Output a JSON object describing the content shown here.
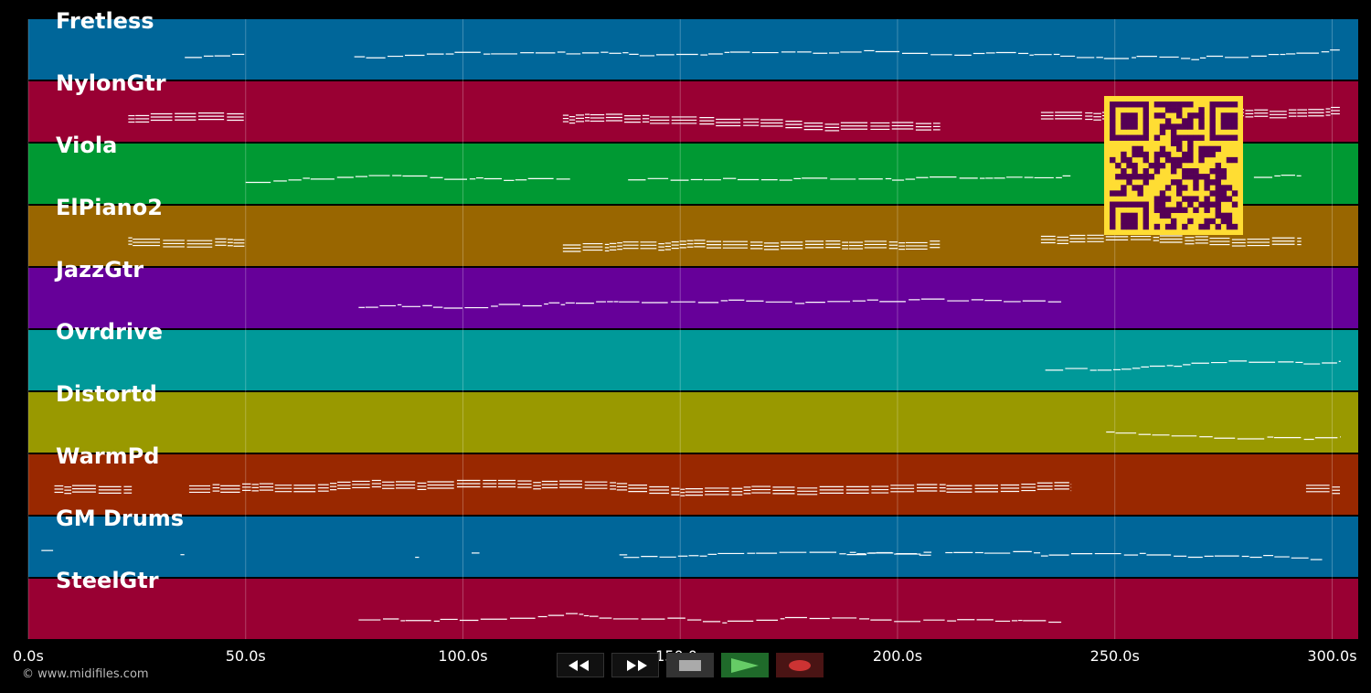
{
  "tracks": [
    {
      "name": "Fretless",
      "color": "#006699"
    },
    {
      "name": "NylonGtr",
      "color": "#990033"
    },
    {
      "name": "Viola",
      "color": "#009933"
    },
    {
      "name": "ElPiano2",
      "color": "#996600"
    },
    {
      "name": "JazzGtr",
      "color": "#660099"
    },
    {
      "name": "Ovrdrive",
      "color": "#009999"
    },
    {
      "name": "Distortd",
      "color": "#999900"
    },
    {
      "name": "WarmPd",
      "color": "#992800"
    },
    {
      "name": "GM Drums",
      "color": "#006699"
    },
    {
      "name": "SteelGtr",
      "color": "#990033"
    }
  ],
  "timeline": {
    "unit": "s",
    "max_seconds": 306,
    "ticks": [
      "0.0s",
      "50.0s",
      "100.0s",
      "150.0s",
      "200.0s",
      "250.0s",
      "300.0s"
    ],
    "tick_values": [
      0,
      50,
      100,
      150,
      200,
      250,
      300
    ]
  },
  "note_segments": [
    [
      [
        36,
        50
      ],
      [
        75,
        302
      ]
    ],
    [
      [
        23,
        50
      ],
      [
        123,
        210
      ],
      [
        233,
        302
      ]
    ],
    [
      [
        50,
        125
      ],
      [
        138,
        240
      ],
      [
        282,
        293
      ]
    ],
    [
      [
        23,
        50
      ],
      [
        123,
        210
      ],
      [
        233,
        293
      ]
    ],
    [
      [
        76,
        238
      ]
    ],
    [
      [
        234,
        302
      ]
    ],
    [
      [
        248,
        302
      ]
    ],
    [
      [
        6,
        24
      ],
      [
        37,
        240
      ],
      [
        294,
        302
      ]
    ],
    [
      [
        3,
        6
      ],
      [
        35,
        36
      ],
      [
        89,
        90
      ],
      [
        102,
        104
      ],
      [
        136,
        138
      ],
      [
        137,
        208
      ],
      [
        189,
        208
      ],
      [
        211,
        233
      ],
      [
        233,
        298
      ]
    ],
    [
      [
        76,
        238
      ]
    ]
  ],
  "copyright": "© www.midifiles.com",
  "transport": {
    "rewind_icon": "rewind-icon",
    "fast_forward_icon": "fast-forward-icon",
    "stop_icon": "stop-icon",
    "play_icon": "play-icon",
    "record_icon": "record-icon",
    "play_color": "#66cc66",
    "record_color": "#cc3333"
  },
  "qr": {
    "fg": "#550055",
    "bg": "#ffdd33"
  }
}
